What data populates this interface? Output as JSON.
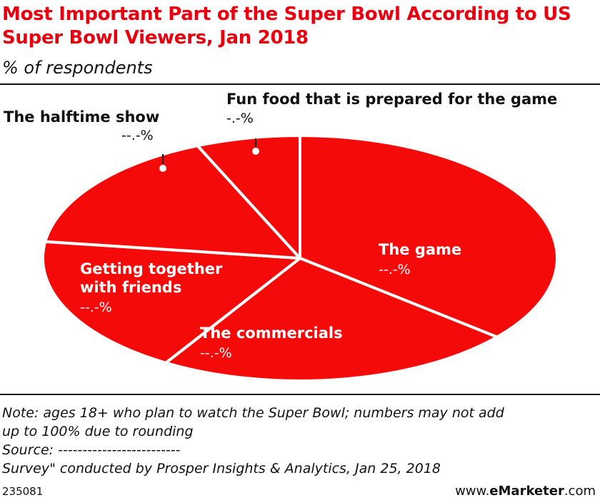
{
  "chart_data": {
    "type": "pie",
    "title": "Most Important Part of the Super Bowl According to US Super Bowl Viewers, Jan 2018",
    "subtitle": "% of respondents",
    "colors": {
      "slice": "#f50a0a",
      "title": "#e8000f",
      "slice_border": "#ffffff"
    },
    "slices": [
      {
        "label": "The game",
        "value_label": "--.-%",
        "value": 34.3
      },
      {
        "label": "The commercials",
        "value_label": "--.-%",
        "value": 21.5
      },
      {
        "label": "Getting together with friends",
        "label_lines": [
          "Getting together",
          "with friends"
        ],
        "value_label": "--.-%",
        "value": 17.5
      },
      {
        "label": "The halftime show",
        "value_label": "--.-%",
        "value": 15.5
      },
      {
        "label": "Fun food that is prepared for the game",
        "value_label": "-.-%",
        "value": 6.2
      }
    ]
  },
  "notes": {
    "line1": "Note: ages 18+ who plan to watch the Super Bowl; numbers may not add",
    "line2": "up to 100% due to rounding",
    "line3": "Source: -------------------------",
    "line4": "Survey\" conducted by Prosper Insights & Analytics, Jan 25, 2018"
  },
  "footer": {
    "chart_id": "235081",
    "brand_prefix": "www.",
    "brand_name": "eMarketer",
    "brand_suffix": ".com"
  }
}
